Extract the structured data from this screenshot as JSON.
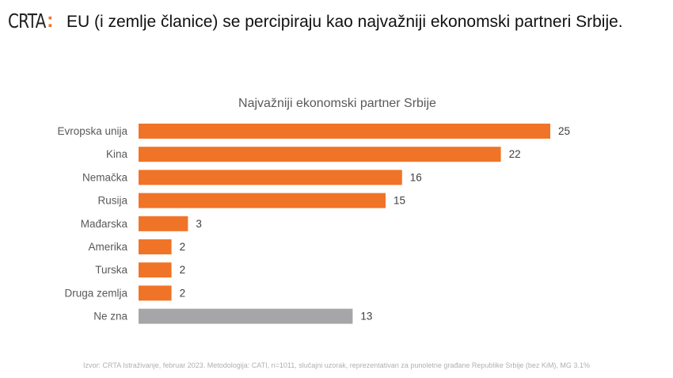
{
  "header": {
    "logo": "CRTA",
    "logo_colon": ":",
    "title": "EU (i zemlje članice) se percipiraju kao najvažniji ekonomski partneri Srbije."
  },
  "colors": {
    "main": "#f07428",
    "unknown": "#a6a6a8",
    "accent": "#f07428"
  },
  "chart_data": {
    "type": "bar",
    "orientation": "horizontal",
    "title": "Najvažniji ekonomski partner Srbije",
    "categories": [
      "Evropska unija",
      "Kina",
      "Nemačka",
      "Rusija",
      "Mađarska",
      "Amerika",
      "Turska",
      "Druga zemlja",
      "Ne zna"
    ],
    "values": [
      25,
      22,
      16,
      15,
      3,
      2,
      2,
      2,
      13
    ],
    "grid": false
  },
  "footer": {
    "source": "Izvor: CRTA Istraživanje, februar 2023. Metodologija: CATI, n=1011, slučajni uzorak, reprezentativan za punoletne građane Republike Srbije (bez KiM), MG 3.1%"
  }
}
